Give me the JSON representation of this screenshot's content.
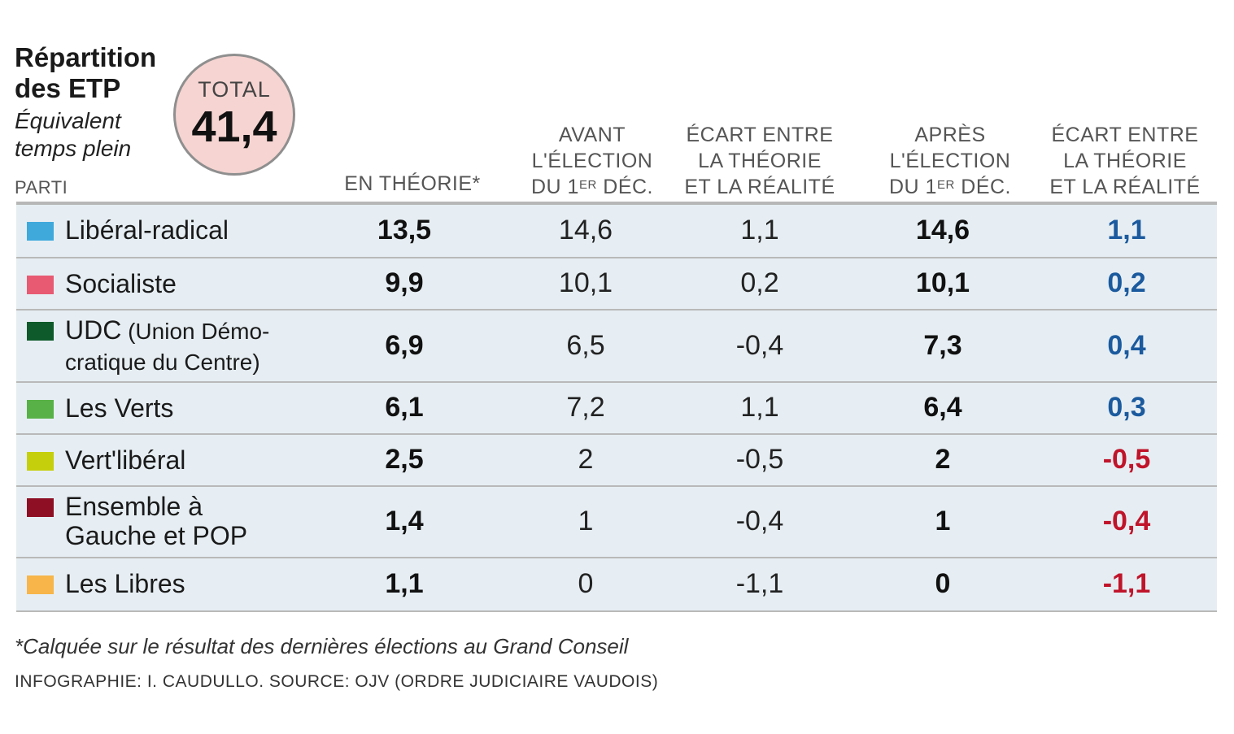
{
  "title": "Répartition des ETP",
  "subtitle": "Équivalent temps plein",
  "total": {
    "label": "TOTAL",
    "value": "41,4"
  },
  "parti_label": "PARTI",
  "columns": {
    "theorie": "EN THÉORIE*",
    "avant": {
      "l1": "AVANT",
      "l2": "L'ÉLECTION",
      "l3a": "DU 1",
      "l3sup": "ER",
      "l3b": " DÉC."
    },
    "ecart1": {
      "l1": "ÉCART ENTRE",
      "l2": "LA THÉORIE",
      "l3": "ET LA RÉALITÉ"
    },
    "apres": {
      "l1": "APRÈS",
      "l2": "L'ÉLECTION",
      "l3a": "DU 1",
      "l3sup": "ER",
      "l3b": " DÉC."
    },
    "ecart2": {
      "l1": "ÉCART ENTRE",
      "l2": "LA THÉORIE",
      "l3": "ET LA RÉALITÉ"
    }
  },
  "colors": {
    "row_bg": "#e6eef3",
    "positive": "#1b5a9e",
    "negative": "#c0142a",
    "total_circle": "#f6d4d1"
  },
  "chart_data": {
    "type": "table",
    "title": "Répartition des ETP",
    "subtitle": "Équivalent temps plein",
    "columns": [
      "PARTI",
      "EN THÉORIE*",
      "AVANT L'ÉLECTION DU 1ER DÉC.",
      "ÉCART ENTRE LA THÉORIE ET LA RÉALITÉ",
      "APRÈS L'ÉLECTION DU 1ER DÉC.",
      "ÉCART ENTRE LA THÉORIE ET LA RÉALITÉ"
    ],
    "rows": [
      {
        "party": "Libéral-radical",
        "party_extra": "",
        "color": "#3fa9dc",
        "theorie": "13,5",
        "avant": "14,6",
        "ecart_avant": "1,1",
        "apres": "14,6",
        "ecart_apres": "1,1",
        "sign": "pos"
      },
      {
        "party": "Socialiste",
        "party_extra": "",
        "color": "#e85a72",
        "theorie": "9,9",
        "avant": "10,1",
        "ecart_avant": "0,2",
        "apres": "10,1",
        "ecart_apres": "0,2",
        "sign": "pos"
      },
      {
        "party": "UDC",
        "party_extra": " (Union Démo-",
        "party_line2": "cratique du Centre)",
        "color": "#0e5a2a",
        "theorie": "6,9",
        "avant": "6,5",
        "ecart_avant": "-0,4",
        "apres": "7,3",
        "ecart_apres": "0,4",
        "sign": "pos"
      },
      {
        "party": "Les Verts",
        "party_extra": "",
        "color": "#58b147",
        "theorie": "6,1",
        "avant": "7,2",
        "ecart_avant": "1,1",
        "apres": "6,4",
        "ecart_apres": "0,3",
        "sign": "pos"
      },
      {
        "party": "Vert'libéral",
        "party_extra": "",
        "color": "#c5cf0c",
        "theorie": "2,5",
        "avant": "2",
        "ecart_avant": "-0,5",
        "apres": "2",
        "ecart_apres": "-0,5",
        "sign": "neg"
      },
      {
        "party": "Ensemble à",
        "party_extra": "",
        "party_line2": "Gauche et POP",
        "color": "#8e0f24",
        "theorie": "1,4",
        "avant": "1",
        "ecart_avant": "-0,4",
        "apres": "1",
        "ecart_apres": "-0,4",
        "sign": "neg"
      },
      {
        "party": "Les Libres",
        "party_extra": "",
        "color": "#f7b54a",
        "theorie": "1,1",
        "avant": "0",
        "ecart_avant": "-1,1",
        "apres": "0",
        "ecart_apres": "-1,1",
        "sign": "neg"
      }
    ]
  },
  "footnote": "*Calquée sur le résultat des dernières élections au Grand Conseil",
  "credit": "INFOGRAPHIE: I. CAUDULLO. SOURCE: OJV (ORDRE JUDICIAIRE VAUDOIS)"
}
